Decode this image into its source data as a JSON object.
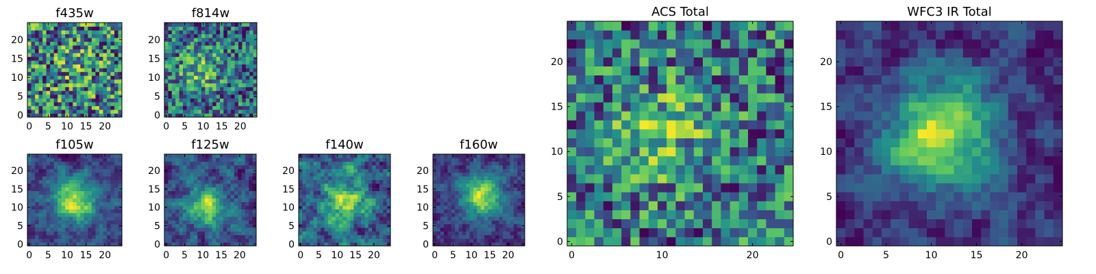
{
  "colormap": {
    "name": "viridis",
    "stops": [
      "#440154",
      "#3b528b",
      "#21918c",
      "#5ec962",
      "#fde725"
    ]
  },
  "chart_data": [
    {
      "type": "heatmap",
      "title": "f435w",
      "grid": [
        25,
        25
      ],
      "xlim": [
        -0.5,
        24.5
      ],
      "ylim": [
        -0.5,
        24.5
      ],
      "xticks": [
        0,
        5,
        10,
        15,
        20
      ],
      "yticks": [
        0,
        5,
        10,
        15,
        20
      ],
      "xtick_labels": [
        "0",
        "5",
        "10",
        "15",
        "20"
      ],
      "ytick_labels": [
        "0",
        "5",
        "10",
        "15",
        "20"
      ],
      "pattern": "noise",
      "peak": [
        12,
        12
      ],
      "peak_strength": 0.05,
      "seed": 11
    },
    {
      "type": "heatmap",
      "title": "f814w",
      "grid": [
        25,
        25
      ],
      "xlim": [
        -0.5,
        24.5
      ],
      "ylim": [
        -0.5,
        24.5
      ],
      "xticks": [
        0,
        5,
        10,
        15,
        20
      ],
      "yticks": [
        0,
        5,
        10,
        15,
        20
      ],
      "xtick_labels": [
        "0",
        "5",
        "10",
        "15",
        "20"
      ],
      "ytick_labels": [
        "0",
        "5",
        "10",
        "15",
        "20"
      ],
      "pattern": "noise",
      "peak": [
        9,
        12
      ],
      "peak_strength": 0.2,
      "seed": 23
    },
    {
      "type": "heatmap",
      "title": "f105w",
      "grid": [
        25,
        25
      ],
      "xlim": [
        -0.5,
        24.5
      ],
      "ylim": [
        -0.5,
        24.5
      ],
      "xticks": [
        0,
        5,
        10,
        15,
        20
      ],
      "yticks": [
        0,
        5,
        10,
        15,
        20
      ],
      "xtick_labels": [
        "0",
        "5",
        "10",
        "15",
        "20"
      ],
      "ytick_labels": [
        "0",
        "5",
        "10",
        "15",
        "20"
      ],
      "pattern": "smooth",
      "peak": [
        12,
        12
      ],
      "peak_strength": 0.45,
      "seed": 37
    },
    {
      "type": "heatmap",
      "title": "f125w",
      "grid": [
        25,
        25
      ],
      "xlim": [
        -0.5,
        24.5
      ],
      "ylim": [
        -0.5,
        24.5
      ],
      "xticks": [
        0,
        5,
        10,
        15,
        20
      ],
      "yticks": [
        0,
        5,
        10,
        15,
        20
      ],
      "xtick_labels": [
        "0",
        "5",
        "10",
        "15",
        "20"
      ],
      "ytick_labels": [
        "0",
        "5",
        "10",
        "15",
        "20"
      ],
      "pattern": "smooth",
      "peak": [
        11,
        10
      ],
      "peak_strength": 0.35,
      "seed": 41
    },
    {
      "type": "heatmap",
      "title": "f140w",
      "grid": [
        25,
        25
      ],
      "xlim": [
        -0.5,
        24.5
      ],
      "ylim": [
        -0.5,
        24.5
      ],
      "xticks": [
        0,
        5,
        10,
        15,
        20
      ],
      "yticks": [
        0,
        5,
        10,
        15,
        20
      ],
      "xtick_labels": [
        "0",
        "5",
        "10",
        "15",
        "20"
      ],
      "ytick_labels": [
        "0",
        "5",
        "10",
        "15",
        "20"
      ],
      "pattern": "smooth",
      "peak": [
        12,
        11
      ],
      "peak_strength": 0.25,
      "seed": 53
    },
    {
      "type": "heatmap",
      "title": "f160w",
      "grid": [
        25,
        25
      ],
      "xlim": [
        -0.5,
        24.5
      ],
      "ylim": [
        -0.5,
        24.5
      ],
      "xticks": [
        0,
        5,
        10,
        15,
        20
      ],
      "yticks": [
        0,
        5,
        10,
        15,
        20
      ],
      "xtick_labels": [
        "0",
        "5",
        "10",
        "15",
        "20"
      ],
      "ytick_labels": [
        "0",
        "5",
        "10",
        "15",
        "20"
      ],
      "pattern": "smooth",
      "peak": [
        13,
        13
      ],
      "peak_strength": 0.45,
      "seed": 67
    },
    {
      "type": "heatmap",
      "title": "ACS Total",
      "grid": [
        25,
        25
      ],
      "xlim": [
        -0.5,
        24.5
      ],
      "ylim": [
        -0.5,
        24.5
      ],
      "xticks": [
        0,
        10,
        20
      ],
      "yticks": [
        0,
        5,
        10,
        15,
        20
      ],
      "xtick_labels": [
        "0",
        "10",
        "20"
      ],
      "ytick_labels": [
        "0",
        "5",
        "10",
        "15",
        "20"
      ],
      "pattern": "noise",
      "peak": [
        10,
        12
      ],
      "peak_strength": 0.15,
      "seed": 79
    },
    {
      "type": "heatmap",
      "title": "WFC3 IR Total",
      "grid": [
        25,
        25
      ],
      "xlim": [
        -0.5,
        24.5
      ],
      "ylim": [
        -0.5,
        24.5
      ],
      "xticks": [
        0,
        5,
        10,
        15,
        20
      ],
      "yticks": [
        0,
        5,
        10,
        15,
        20
      ],
      "xtick_labels": [
        "0",
        "5",
        "10",
        "15",
        "20"
      ],
      "ytick_labels": [
        "0",
        "5",
        "10",
        "15",
        "20"
      ],
      "pattern": "smooth",
      "peak": [
        11,
        12
      ],
      "peak_strength": 0.55,
      "seed": 97
    }
  ]
}
